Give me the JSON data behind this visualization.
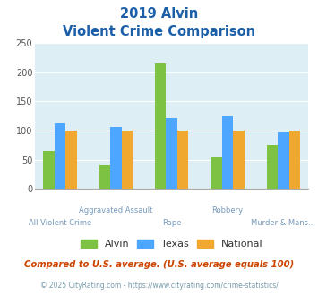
{
  "title_line1": "2019 Alvin",
  "title_line2": "Violent Crime Comparison",
  "categories": [
    "All Violent Crime",
    "Aggravated Assault",
    "Rape",
    "Robbery",
    "Murder & Mans..."
  ],
  "series": {
    "Alvin": [
      65,
      40,
      215,
      54,
      75
    ],
    "Texas": [
      112,
      106,
      121,
      124,
      97
    ],
    "National": [
      100,
      100,
      100,
      100,
      100
    ]
  },
  "colors": {
    "Alvin": "#7dc242",
    "Texas": "#4da6ff",
    "National": "#f0a830"
  },
  "ylim": [
    0,
    250
  ],
  "yticks": [
    0,
    50,
    100,
    150,
    200,
    250
  ],
  "bg_color": "#deeef5",
  "title_color": "#1a5fa8",
  "subtitle_text": "Compared to U.S. average. (U.S. average equals 100)",
  "subtitle_color": "#cc4400",
  "footer_text": "© 2025 CityRating.com - https://www.cityrating.com/crime-statistics/",
  "footer_color": "#7799aa",
  "top_labels": [
    "",
    "Aggravated Assault",
    "",
    "Robbery",
    ""
  ],
  "bottom_labels": [
    "All Violent Crime",
    "",
    "Rape",
    "",
    "Murder & Mans..."
  ],
  "label_color": "#7799bb"
}
